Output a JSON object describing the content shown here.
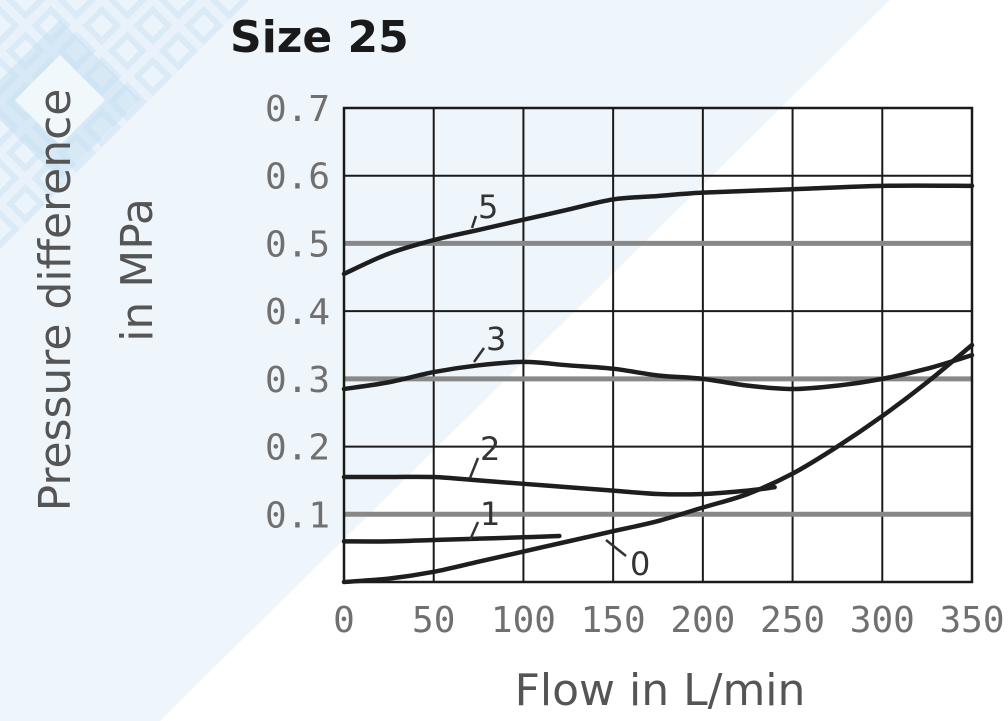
{
  "chart_data": {
    "type": "line",
    "title": "Size 25",
    "xlabel": "Flow in L/min",
    "ylabel_line1": "Pressure difference",
    "ylabel_line2": "in MPa",
    "xlim": [
      0,
      350
    ],
    "ylim": [
      0,
      0.7
    ],
    "x_ticks": [
      "0",
      "50",
      "100",
      "150",
      "200",
      "250",
      "300",
      "350"
    ],
    "y_ticks": [
      "0.1",
      "0.2",
      "0.3",
      "0.4",
      "0.5",
      "0.6",
      "0.7"
    ],
    "grid": true,
    "series": [
      {
        "name": "5",
        "x": [
          0,
          25,
          50,
          75,
          100,
          125,
          150,
          175,
          200,
          250,
          300,
          350
        ],
        "y": [
          0.455,
          0.485,
          0.505,
          0.52,
          0.535,
          0.55,
          0.565,
          0.57,
          0.575,
          0.58,
          0.585,
          0.585
        ]
      },
      {
        "name": "3",
        "x": [
          0,
          25,
          50,
          75,
          100,
          125,
          150,
          175,
          200,
          225,
          250,
          275,
          300,
          325,
          350
        ],
        "y": [
          0.285,
          0.295,
          0.31,
          0.32,
          0.325,
          0.32,
          0.315,
          0.305,
          0.3,
          0.29,
          0.285,
          0.29,
          0.3,
          0.315,
          0.335
        ]
      },
      {
        "name": "2",
        "x": [
          0,
          25,
          50,
          75,
          100,
          125,
          150,
          175,
          200,
          225,
          240
        ],
        "y": [
          0.155,
          0.155,
          0.155,
          0.15,
          0.145,
          0.14,
          0.135,
          0.13,
          0.13,
          0.135,
          0.14
        ]
      },
      {
        "name": "1",
        "x": [
          0,
          25,
          50,
          75,
          100,
          120
        ],
        "y": [
          0.06,
          0.06,
          0.062,
          0.064,
          0.066,
          0.068
        ]
      },
      {
        "name": "0",
        "x": [
          0,
          25,
          50,
          75,
          100,
          125,
          150,
          175,
          200,
          225,
          250,
          275,
          300,
          325,
          350
        ],
        "y": [
          0.0,
          0.005,
          0.015,
          0.03,
          0.045,
          0.06,
          0.075,
          0.09,
          0.11,
          0.13,
          0.16,
          0.2,
          0.245,
          0.295,
          0.35
        ]
      }
    ]
  }
}
